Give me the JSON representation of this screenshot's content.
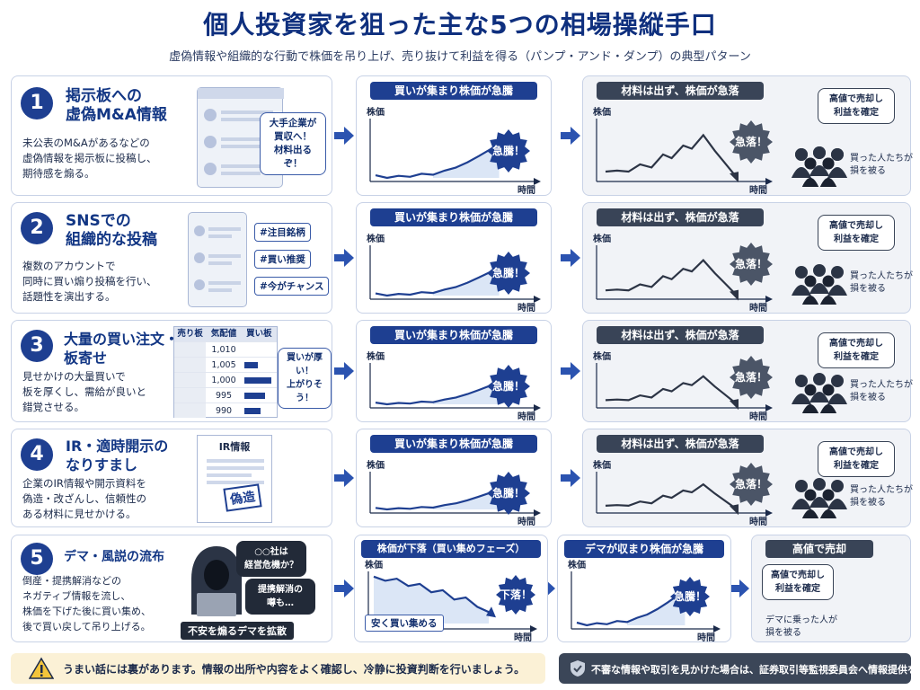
{
  "title": "個人投資家を狙った主な5つの相場操縦手口",
  "subtitle": "虚偽情報や組織的な行動で株価を吊り上げ、売り抜けて利益を得る（パンプ・アンド・ダンプ）の典型パターン",
  "labels": {
    "price": "株価",
    "time": "時間",
    "surge": "急騰！",
    "crash": "急落！",
    "drop": "下落！",
    "sell_bubble": "高値で売却し\n利益を確定",
    "buyers_lost": "買った人たちが\n損を被る",
    "rise_title": "買いが集まり株価が急騰",
    "fall_title": "材料は出ず、株価が急落"
  },
  "rows": [
    {
      "num": "1",
      "title": "掲示板への\n虚偽M&A情報",
      "desc": "未公表のM&Aがあるなどの\n虚偽情報を掲示板に投稿し、\n期待感を煽る。",
      "bubble": "大手企業が\n買収へ！\n材料出るぞ！"
    },
    {
      "num": "2",
      "title": "SNSでの\n組織的な投稿",
      "desc": "複数のアカウントで\n同時に買い煽り投稿を行い、\n話題性を演出する。",
      "tags": [
        "#注目銘柄",
        "#買い推奨",
        "#今がチャンス"
      ]
    },
    {
      "num": "3",
      "title": "大量の買い注文・\n板寄せ",
      "desc": "見せかけの大量買いで\n板を厚くし、需給が良いと\n錯覚させる。",
      "bubble": "買いが厚い！\n上がりそう！",
      "board": {
        "headers": [
          "売り板",
          "気配値",
          "買い板"
        ],
        "prices": [
          "1,010",
          "1,005",
          "1,000",
          "995",
          "990"
        ],
        "buy_levels": [
          0.0,
          0.45,
          0.9,
          0.7,
          0.55
        ]
      }
    },
    {
      "num": "4",
      "title": "IR・適時開示の\nなりすまし",
      "desc": "企業のIR情報や開示資料を\n偽造・改ざんし、信頼性の\nある材料に見せかける。",
      "doc_title": "IR情報",
      "stamp": "偽造"
    },
    {
      "num": "5",
      "title": "デマ・風説の流布",
      "desc": "倒産・提携解消などの\nネガティブ情報を流し、\n株価を下げた後に買い集め、\n後で買い戻して吊り上げる。",
      "bubble1": "○○社は\n経営危機か？",
      "bubble2": "提携解消の\n噂も…",
      "caption": "不安を煽るデマを拡散",
      "p1_title": "株価が下落（買い集めフェーズ）",
      "p1_note": "安く買い集める",
      "p2_title": "デマが収まり株価が急騰",
      "p3_title": "高値で売却",
      "p3_note": "デマに乗った人が\n損を被る"
    }
  ],
  "footer": {
    "warning": "うまい話には裏があります。情報の出所や内容をよく確認し、冷静に投資判断を行いましょう。",
    "report": "不審な情報や取引を見かけた場合は、証券取引等監視委員会へ情報提供を。"
  },
  "colors": {
    "navy": "#1e3f91",
    "dark": "#394457",
    "accent": "#123684"
  },
  "icons": [
    "user-icon",
    "warning-icon",
    "shield-icon",
    "hacker-icon",
    "laptop-icon",
    "trend-up-icon",
    "trend-down-icon"
  ]
}
